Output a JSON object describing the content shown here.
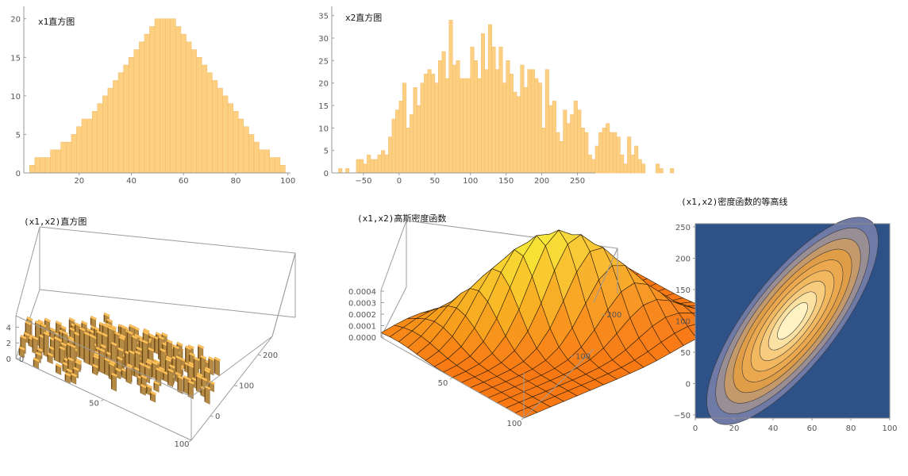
{
  "colors": {
    "bar_fill": "#fcd080",
    "bar_stroke": "#f2b866",
    "bar3d_top": "#ffc35c",
    "bar3d_side": "#7a5218",
    "bar3d_front": "#b58a45",
    "surface_mesh": "#2a1d08",
    "contour_bg": "#2e5188",
    "contour_center": "#fff3c4"
  },
  "chart_data": [
    {
      "id": "hist_x1",
      "type": "bar",
      "title": "x1直方图",
      "xlim": [
        0,
        101
      ],
      "ylim": [
        0,
        21
      ],
      "x_ticks": [
        20,
        40,
        60,
        80,
        100
      ],
      "y_ticks": [
        0,
        5,
        10,
        15,
        20
      ],
      "bin_width": 2,
      "bins_start": 1,
      "values": [
        1,
        2,
        2,
        2,
        3,
        3,
        4,
        4,
        5,
        6,
        7,
        7,
        8,
        9,
        10,
        11,
        12,
        13,
        14,
        15,
        16,
        17,
        18,
        19,
        20,
        20,
        20,
        20,
        19,
        18,
        17,
        16,
        15,
        14,
        13,
        12,
        11,
        10,
        9,
        8,
        7,
        6,
        5,
        4,
        3,
        3,
        2,
        2,
        1
      ]
    },
    {
      "id": "hist_x2",
      "type": "bar",
      "title": "x2直方图",
      "xlim": [
        -90,
        275
      ],
      "ylim": [
        0,
        36
      ],
      "x_ticks": [
        -50,
        0,
        50,
        100,
        150,
        200,
        250
      ],
      "y_ticks": [
        0,
        5,
        10,
        15,
        20,
        25,
        30,
        35
      ],
      "bin_width": 5,
      "bins_start": -85,
      "values": [
        1,
        0,
        1,
        0,
        0,
        3,
        3,
        2,
        4,
        3,
        3,
        4,
        5,
        4,
        8,
        12,
        14,
        16,
        20,
        10,
        13,
        19,
        15,
        20,
        22,
        23,
        22,
        20,
        25,
        27,
        21,
        34,
        24,
        25,
        21,
        21,
        21,
        28,
        25,
        21,
        31,
        23,
        33,
        28,
        23,
        28,
        20,
        25,
        22,
        18,
        17,
        24,
        19,
        23,
        23,
        21,
        20,
        10,
        23,
        15,
        16,
        9,
        7,
        14,
        11,
        13,
        16,
        14,
        10,
        9,
        4,
        3,
        6,
        9,
        10,
        11,
        9,
        9,
        8,
        4,
        2,
        8,
        4,
        6,
        3,
        2,
        0,
        0,
        0,
        2,
        1,
        0,
        0,
        1
      ]
    },
    {
      "id": "hist3d",
      "type": "bar",
      "title": "(x1,x2)直方图",
      "x_ticks": [
        50,
        100
      ],
      "y_ticks": [
        0,
        100,
        200
      ],
      "z_ticks": [
        0,
        2,
        4
      ],
      "xlim": [
        0,
        100
      ],
      "ylim": [
        -80,
        260
      ],
      "zlim": [
        0,
        6
      ],
      "note_points": "bars are 2D histogram counts of (x1, x2) with heights 1 to 5"
    },
    {
      "id": "density3d",
      "type": "area",
      "title": "(x1,x2)高斯密度函数",
      "x_ticks": [
        50,
        100
      ],
      "y_ticks": [
        100,
        200
      ],
      "z_ticks": [
        "0.0000",
        "0.0001",
        "0.0002",
        "0.0003",
        "0.0004"
      ],
      "xlim": [
        0,
        100
      ],
      "ylim": [
        -50,
        250
      ],
      "zlim": [
        0,
        0.00045
      ]
    },
    {
      "id": "contour",
      "type": "heatmap",
      "title": "(x1,x2)密度函数的等高线",
      "xlim": [
        0,
        100
      ],
      "ylim": [
        -55,
        255
      ],
      "x_ticks": [
        0,
        20,
        40,
        60,
        80,
        100
      ],
      "y_ticks": [
        -50,
        0,
        50,
        100,
        150,
        200,
        250
      ],
      "center": [
        50,
        100
      ]
    }
  ]
}
